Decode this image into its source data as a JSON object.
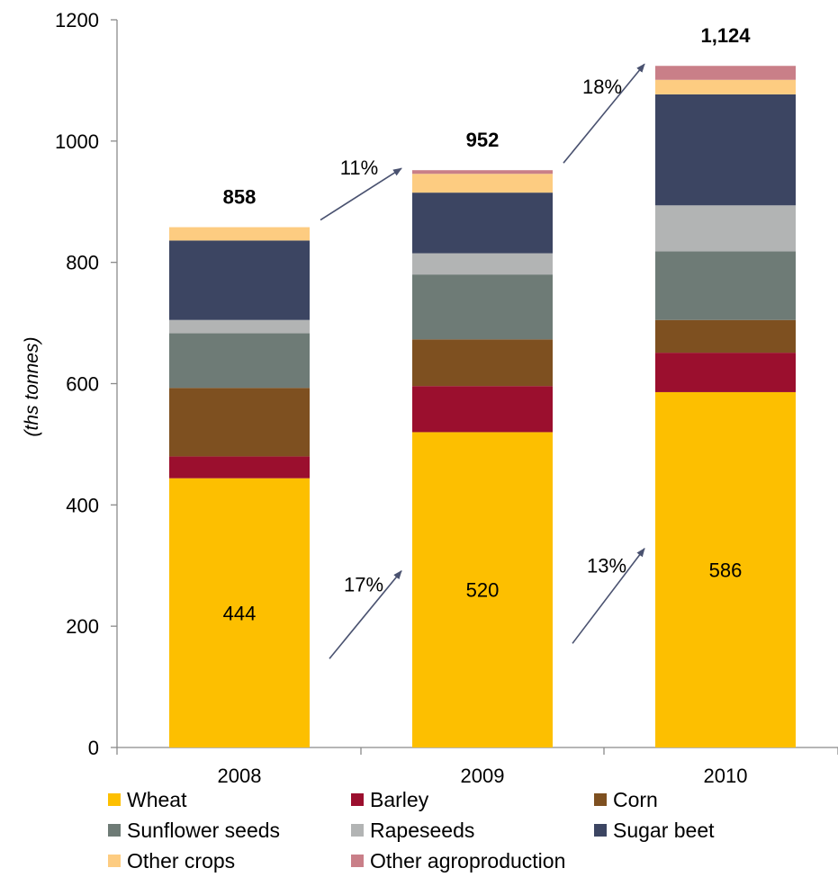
{
  "chart_data": {
    "type": "bar",
    "stacked": true,
    "categories": [
      "2008",
      "2009",
      "2010"
    ],
    "ylabel": "(ths tonnes)",
    "ylim": [
      0,
      1200
    ],
    "yticks": [
      0,
      200,
      400,
      600,
      800,
      1000,
      1200
    ],
    "series": [
      {
        "name": "Wheat",
        "color": "#FDBF00",
        "values": [
          444,
          520,
          586
        ]
      },
      {
        "name": "Barley",
        "color": "#9B0F2E",
        "values": [
          36,
          76,
          65
        ]
      },
      {
        "name": "Corn",
        "color": "#7E5020",
        "values": [
          113,
          77,
          54
        ]
      },
      {
        "name": "Sunflower seeds",
        "color": "#6E7B76",
        "values": [
          90,
          107,
          113
        ]
      },
      {
        "name": "Rapeseeds",
        "color": "#B2B4B4",
        "values": [
          22,
          35,
          76
        ]
      },
      {
        "name": "Sugar beet",
        "color": "#3C4562",
        "values": [
          131,
          100,
          183
        ]
      },
      {
        "name": "Other crops",
        "color": "#FDCC81",
        "values": [
          22,
          31,
          24
        ]
      },
      {
        "name": "Other agroproduction",
        "color": "#C97F88",
        "values": [
          0,
          6,
          23
        ]
      }
    ],
    "totals": [
      "858",
      "952",
      "1,124"
    ],
    "wheat_labels": [
      "444",
      "520",
      "586"
    ],
    "growth_annotations": {
      "total": [
        "11%",
        "18%"
      ],
      "wheat": [
        "17%",
        "13%"
      ]
    },
    "arrow_color": "#4A5270",
    "grid": false,
    "legend_position": "bottom"
  }
}
